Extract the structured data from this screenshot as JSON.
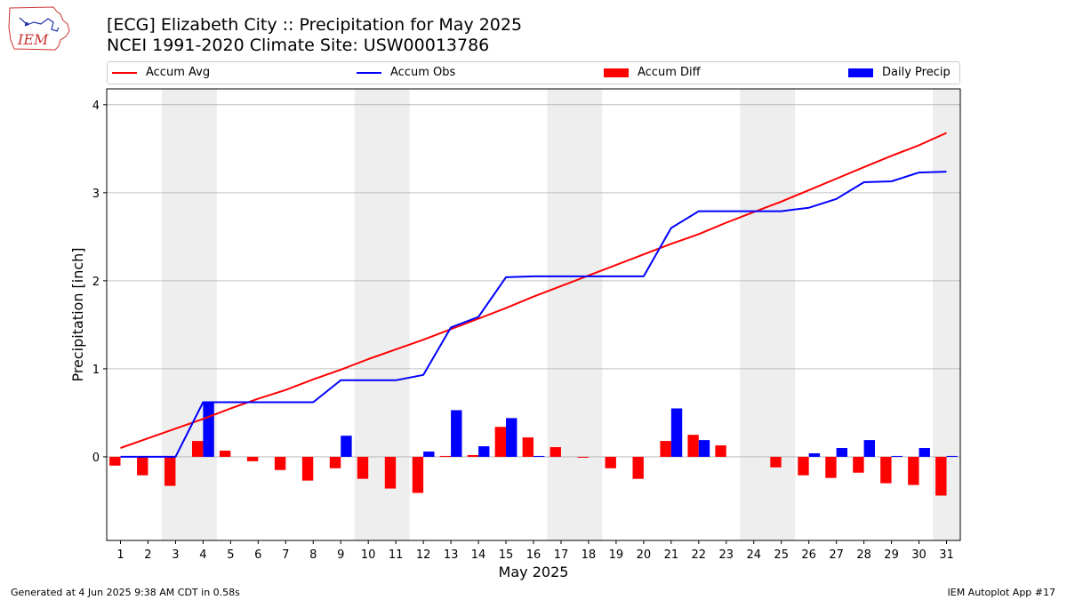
{
  "header": {
    "title_line1": "[ECG] Elizabeth City :: Precipitation for May 2025",
    "title_line2": "NCEI 1991-2020 Climate Site: USW00013786"
  },
  "logo": {
    "text": "IEM",
    "color": "#cc3333"
  },
  "footer": {
    "left": "Generated at 4 Jun 2025 9:38 AM CDT in 0.58s",
    "right": "IEM Autoplot App #17"
  },
  "colors": {
    "avg": "#ff0000",
    "obs": "#0000ff",
    "diff": "#ff0000",
    "daily": "#0000ff",
    "shade": "#eeeeee",
    "grid": "#b0b0b0"
  },
  "chart_data": {
    "type": "bar",
    "xlabel": "May 2025",
    "ylabel": "Precipitation [inch]",
    "ylim": [
      -0.95,
      4.18
    ],
    "yticks": [
      0,
      1,
      2,
      3,
      4
    ],
    "grid": true,
    "legend_position": "top",
    "days": [
      1,
      2,
      3,
      4,
      5,
      6,
      7,
      8,
      9,
      10,
      11,
      12,
      13,
      14,
      15,
      16,
      17,
      18,
      19,
      20,
      21,
      22,
      23,
      24,
      25,
      26,
      27,
      28,
      29,
      30,
      31
    ],
    "weekend_days": [
      3,
      4,
      10,
      11,
      17,
      18,
      24,
      25,
      31
    ],
    "series": [
      {
        "name": "Accum Avg",
        "kind": "line",
        "values": [
          0.1,
          0.21,
          0.32,
          0.43,
          0.55,
          0.66,
          0.76,
          0.88,
          0.99,
          1.11,
          1.22,
          1.33,
          1.45,
          1.57,
          1.69,
          1.82,
          1.94,
          2.06,
          2.18,
          2.3,
          2.42,
          2.53,
          2.66,
          2.78,
          2.9,
          3.03,
          3.16,
          3.29,
          3.42,
          3.54,
          3.68
        ]
      },
      {
        "name": "Accum Obs",
        "kind": "line",
        "values": [
          0.0,
          0.0,
          0.0,
          0.62,
          0.62,
          0.62,
          0.62,
          0.62,
          0.87,
          0.87,
          0.87,
          0.93,
          1.47,
          1.59,
          2.04,
          2.05,
          2.05,
          2.05,
          2.05,
          2.05,
          2.6,
          2.79,
          2.79,
          2.79,
          2.79,
          2.83,
          2.93,
          3.12,
          3.13,
          3.23,
          3.24
        ]
      },
      {
        "name": "Accum Diff",
        "kind": "bar",
        "values": [
          -0.1,
          -0.21,
          -0.33,
          0.18,
          0.07,
          -0.05,
          -0.15,
          -0.27,
          -0.13,
          -0.25,
          -0.36,
          -0.41,
          0.01,
          0.02,
          0.34,
          0.22,
          0.11,
          -0.01,
          -0.13,
          -0.25,
          0.18,
          0.25,
          0.13,
          0.0,
          -0.12,
          -0.21,
          -0.24,
          -0.18,
          -0.3,
          -0.32,
          -0.44
        ]
      },
      {
        "name": "Daily Precip",
        "kind": "bar",
        "values": [
          0.0,
          0.0,
          0.0,
          0.62,
          0.0,
          0.0,
          0.0,
          0.0,
          0.24,
          0.0,
          0.0,
          0.06,
          0.53,
          0.12,
          0.44,
          0.01,
          0.0,
          0.0,
          0.0,
          0.0,
          0.55,
          0.19,
          0.0,
          0.0,
          0.0,
          0.04,
          0.1,
          0.19,
          0.01,
          0.1,
          0.01
        ]
      }
    ]
  }
}
